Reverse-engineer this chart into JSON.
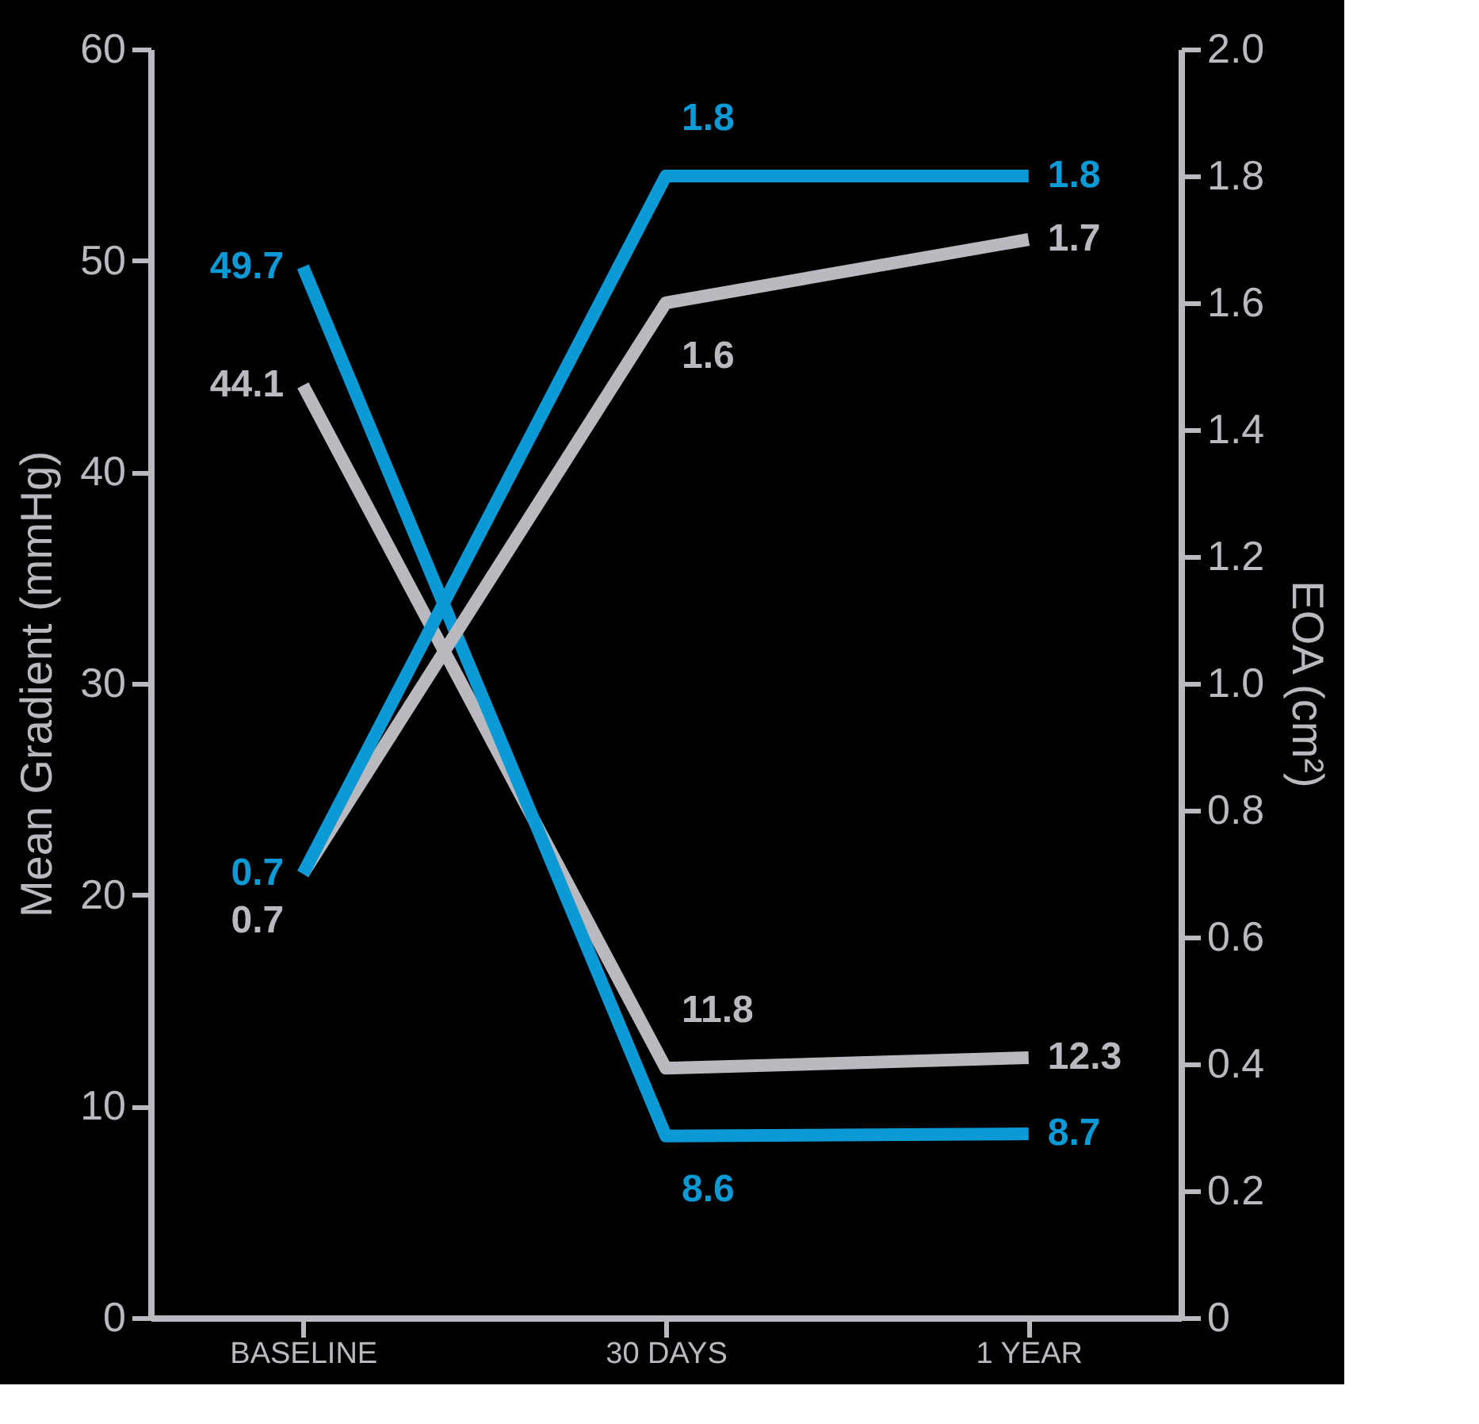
{
  "chart_data": {
    "type": "line",
    "ylabel": "Mean Gradient (mmHg)",
    "y2label": "EOA (cm²)",
    "categories": [
      "BASELINE",
      "30 DAYS",
      "1 YEAR"
    ],
    "series": [
      {
        "color": "#0b9ad6",
        "values": [
          49.7,
          8.6,
          8.7
        ]
      },
      {
        "color": "#b9b9bf",
        "values": [
          44.1,
          11.8,
          12.3
        ]
      },
      {
        "color": "#0b9ad6",
        "values": [
          0.7,
          1.8,
          1.8
        ],
        "axis": "y2"
      },
      {
        "color": "#b9b9bf",
        "values": [
          0.7,
          1.6,
          1.7
        ],
        "axis": "y2"
      }
    ],
    "ylim": [
      0,
      60
    ],
    "yticks": [
      0,
      10,
      20,
      30,
      40,
      50,
      60
    ],
    "y2lim": [
      0,
      2
    ],
    "y2ticks": [
      0,
      {
        "value": 0.2,
        "label": "0.2"
      },
      {
        "value": 0.4,
        "label": "0.4"
      },
      {
        "value": 0.6,
        "label": "0.6"
      },
      {
        "value": 0.8,
        "label": "0.8"
      },
      {
        "value": 1,
        "label": "1.0"
      },
      {
        "value": 1.2,
        "label": "1.2"
      },
      {
        "value": 1.4,
        "label": "1.4"
      },
      {
        "value": 1.6,
        "label": "1.6"
      },
      {
        "value": 1.8,
        "label": "1.8"
      },
      {
        "value": 2,
        "label": "2.0"
      }
    ],
    "data_labels": true,
    "grid": false,
    "marker": "none",
    "line_style": "solid"
  }
}
